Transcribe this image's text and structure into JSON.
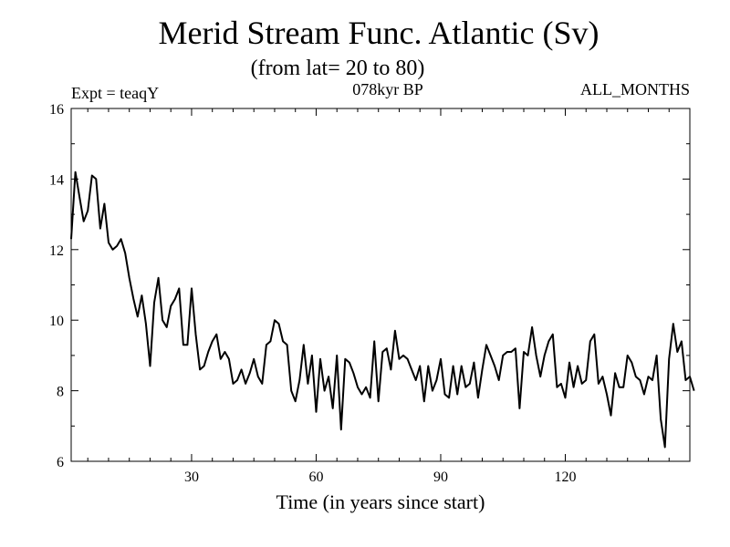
{
  "chart_data": {
    "type": "line",
    "title": "Merid Stream Func. Atlantic (Sv)",
    "subtitle": "(from lat= 20 to 80)",
    "experiment_label": "Expt = teaqY",
    "period_label": "078kyr BP",
    "months_label": "ALL_MONTHS",
    "xlabel": "Time (in years since start)",
    "ylabel": "",
    "xlim": [
      1,
      150
    ],
    "ylim": [
      6,
      16
    ],
    "x_ticks": [
      30,
      60,
      90,
      120
    ],
    "y_ticks": [
      6,
      8,
      10,
      12,
      14,
      16
    ],
    "grid": false,
    "series": [
      {
        "name": "Merid Stream Func. Atlantic",
        "color": "#000000",
        "x_start": 1,
        "x_step": 1,
        "values": [
          12.3,
          14.2,
          13.5,
          12.8,
          13.1,
          14.1,
          14.0,
          12.6,
          13.3,
          12.2,
          12.0,
          12.1,
          12.3,
          11.9,
          11.2,
          10.6,
          10.1,
          10.7,
          9.9,
          8.7,
          10.5,
          11.2,
          10.0,
          9.8,
          10.4,
          10.6,
          10.9,
          9.3,
          9.3,
          10.9,
          9.6,
          8.6,
          8.7,
          9.1,
          9.4,
          9.6,
          8.9,
          9.1,
          8.9,
          8.2,
          8.3,
          8.6,
          8.2,
          8.5,
          8.9,
          8.4,
          8.2,
          9.3,
          9.4,
          10.0,
          9.9,
          9.4,
          9.3,
          8.0,
          7.7,
          8.3,
          9.3,
          8.2,
          9.0,
          7.4,
          8.9,
          8.0,
          8.4,
          7.5,
          9.0,
          6.9,
          8.9,
          8.8,
          8.5,
          8.1,
          7.9,
          8.1,
          7.8,
          9.4,
          7.7,
          9.1,
          9.2,
          8.6,
          9.7,
          8.9,
          9.0,
          8.9,
          8.6,
          8.3,
          8.7,
          7.7,
          8.7,
          8.0,
          8.3,
          8.9,
          7.9,
          7.8,
          8.7,
          7.9,
          8.7,
          8.1,
          8.2,
          8.8,
          7.8,
          8.6,
          9.3,
          9.0,
          8.7,
          8.3,
          9.0,
          9.1,
          9.1,
          9.2,
          7.5,
          9.1,
          9.0,
          9.8,
          9.0,
          8.4,
          9.0,
          9.4,
          9.6,
          8.1,
          8.2,
          7.8,
          8.8,
          8.1,
          8.7,
          8.2,
          8.3,
          9.4,
          9.6,
          8.2,
          8.4,
          7.9,
          7.3,
          8.5,
          8.1,
          8.1,
          9.0,
          8.8,
          8.4,
          8.3,
          7.9,
          8.4,
          8.3,
          9.0,
          7.2,
          6.4,
          8.9,
          9.9,
          9.1,
          9.4,
          8.3,
          8.4,
          8.0
        ]
      }
    ]
  }
}
